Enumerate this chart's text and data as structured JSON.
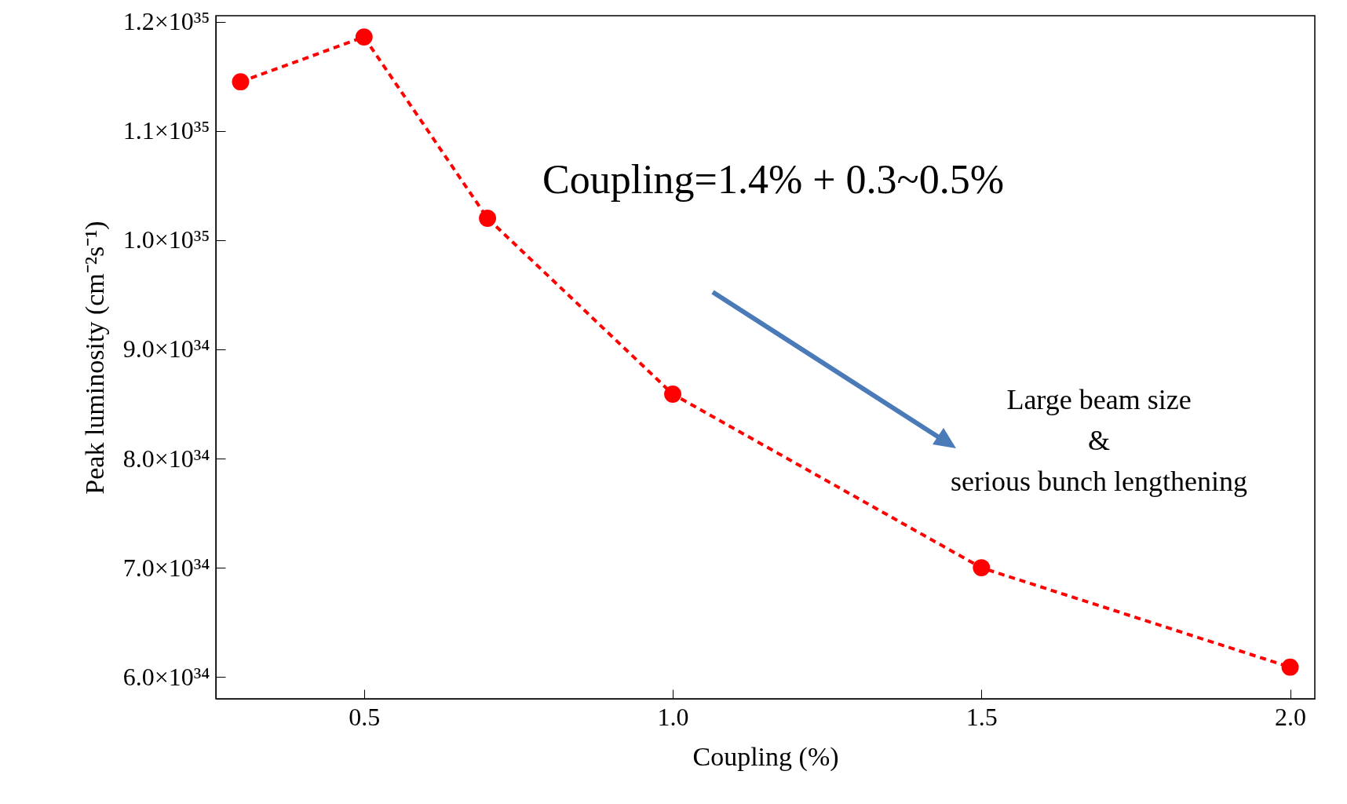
{
  "chart_data": {
    "type": "line",
    "xlabel": "Coupling (%)",
    "ylabel": "Peak luminosity (cm⁻²s⁻¹)",
    "x": [
      0.3,
      0.5,
      0.7,
      1.0,
      1.5,
      2.0
    ],
    "series": [
      {
        "color": "#ff0000",
        "values": [
          1.145e+35,
          1.186e+35,
          1.02e+35,
          8.59e+34,
          7e+34,
          6.09e+34
        ]
      }
    ],
    "xlim": [
      0.26,
      2.04
    ],
    "xticks": [
      0.5,
      {
        "value": 1,
        "label": "1.0"
      },
      1.5,
      {
        "value": 2,
        "label": "2.0"
      }
    ],
    "ylim": [
      5.8e+34,
      1.2055e+35
    ],
    "yticks": [
      {
        "value": 6e+34,
        "label": "6.0×10³⁴"
      },
      {
        "value": 7e+34,
        "label": "7.0×10³⁴"
      },
      {
        "value": 8e+34,
        "label": "8.0×10³⁴"
      },
      {
        "value": 9e+34,
        "label": "9.0×10³⁴"
      },
      {
        "value": 1e+35,
        "label": "1.0×10³⁵"
      },
      {
        "value": 1.1e+35,
        "label": "1.1×10³⁵"
      },
      {
        "value": 1.2e+35,
        "label": "1.2×10³⁵"
      }
    ],
    "marker": "circle",
    "line_style": "dashed",
    "grid": false,
    "annotations": [
      "Coupling=1.4% + 0.3~0.5%",
      "Large beam size\n&\nserious bunch lengthening"
    ]
  }
}
